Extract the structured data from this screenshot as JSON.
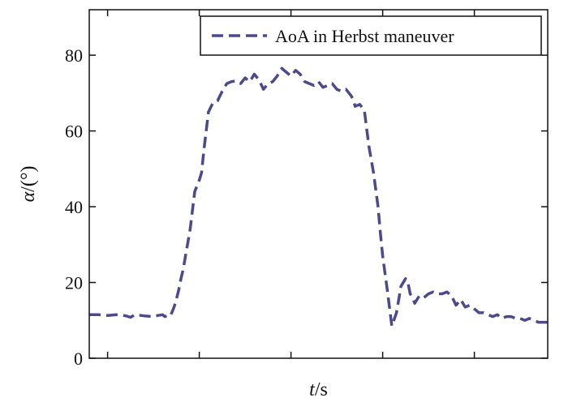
{
  "chart_data": {
    "type": "line",
    "title": "",
    "xlabel_italic": "t",
    "xlabel_unit": "/s",
    "ylabel_italic": "α",
    "ylabel_unit": "/(°)",
    "ylim": [
      0,
      92
    ],
    "yticks": [
      0,
      20,
      40,
      60,
      80
    ],
    "xlim": [
      0,
      100
    ],
    "xticks": [
      4,
      24,
      44,
      64,
      84
    ],
    "grid": false,
    "legend_position": "top-right",
    "series": [
      {
        "name": "AoA in Herbst maneuver",
        "color": "#4a4a8c",
        "style": "dashed",
        "x": [
          0,
          2,
          4,
          6,
          8,
          9,
          10,
          12,
          14,
          15,
          16,
          16.5,
          17,
          17.5,
          18,
          18.5,
          19,
          19.5,
          20,
          20.5,
          21,
          22,
          23,
          24,
          24.5,
          25,
          26,
          27,
          28,
          29,
          30,
          31,
          32,
          33,
          34,
          35,
          36,
          37,
          38,
          39,
          40,
          41,
          42,
          43,
          44,
          45,
          46,
          47,
          48,
          49,
          50,
          51,
          52,
          53,
          54,
          55,
          56,
          57,
          57.5,
          58,
          59,
          60,
          61,
          62,
          63,
          63.5,
          64,
          65,
          66,
          67,
          68,
          69,
          69.5,
          70,
          70.5,
          71,
          72,
          73,
          74,
          75,
          76,
          77,
          78,
          79,
          80,
          81,
          82,
          83,
          84,
          85,
          86,
          87,
          88,
          89,
          90,
          91,
          92,
          93,
          94,
          95,
          96,
          97,
          98,
          99,
          100
        ],
        "y": [
          11.5,
          11.5,
          11.3,
          11.5,
          11.2,
          10.8,
          11.5,
          11.2,
          11.0,
          11.3,
          11.5,
          11.0,
          11.2,
          11.0,
          12.0,
          13.5,
          15.5,
          18,
          21,
          23.5,
          27,
          34,
          44,
          47,
          49,
          55,
          65,
          67.5,
          68,
          70.5,
          72.5,
          73,
          73.2,
          72.5,
          74,
          73,
          75,
          73.5,
          71,
          72.5,
          73,
          74.5,
          76.5,
          75.5,
          74.5,
          76,
          75,
          73,
          72.5,
          72,
          73,
          71.5,
          72,
          72.5,
          71,
          70.5,
          71,
          69.5,
          68.5,
          66.5,
          67,
          65.5,
          56,
          49,
          40,
          33,
          27,
          18,
          8.5,
          12,
          19,
          21,
          20,
          17,
          16,
          14.5,
          16.5,
          16,
          17,
          17.5,
          17,
          17,
          17.5,
          16.5,
          14,
          15.5,
          13.5,
          14,
          13,
          12,
          12,
          11.5,
          11,
          11.5,
          10.5,
          11,
          11,
          10.5,
          10.5,
          10,
          10.5,
          10,
          9.5,
          9.5,
          9.5
        ]
      }
    ]
  }
}
